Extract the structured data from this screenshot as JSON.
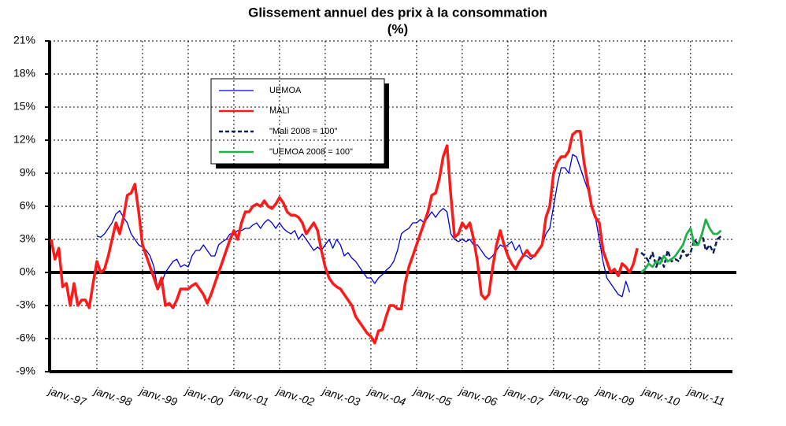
{
  "chart_data": {
    "type": "line",
    "title": "Glissement annuel des prix à la consommation",
    "subtitle": "(%)",
    "categories": [
      "janv.-97",
      null,
      null,
      null,
      null,
      null,
      null,
      null,
      null,
      null,
      null,
      null,
      "janv.-98",
      null,
      null,
      null,
      null,
      null,
      null,
      null,
      null,
      null,
      null,
      null,
      "janv.-99",
      null,
      null,
      null,
      null,
      null,
      null,
      null,
      null,
      null,
      null,
      null,
      "janv.-00",
      null,
      null,
      null,
      null,
      null,
      null,
      null,
      null,
      null,
      null,
      null,
      "janv.-01",
      null,
      null,
      null,
      null,
      null,
      null,
      null,
      null,
      null,
      null,
      null,
      "janv.-02",
      null,
      null,
      null,
      null,
      null,
      null,
      null,
      null,
      null,
      null,
      null,
      "janv.-03",
      null,
      null,
      null,
      null,
      null,
      null,
      null,
      null,
      null,
      null,
      null,
      "janv.-04",
      null,
      null,
      null,
      null,
      null,
      null,
      null,
      null,
      null,
      null,
      null,
      "janv.-05",
      null,
      null,
      null,
      null,
      null,
      null,
      null,
      null,
      null,
      null,
      null,
      "janv.-06",
      null,
      null,
      null,
      null,
      null,
      null,
      null,
      null,
      null,
      null,
      null,
      "janv.-07",
      null,
      null,
      null,
      null,
      null,
      null,
      null,
      null,
      null,
      null,
      null,
      "janv.-08",
      null,
      null,
      null,
      null,
      null,
      null,
      null,
      null,
      null,
      null,
      null,
      "janv.-09",
      null,
      null,
      null,
      null,
      null,
      null,
      null,
      null,
      null,
      null,
      null,
      "janv.-10",
      null,
      null,
      null,
      null,
      null,
      null,
      null,
      null,
      null,
      null,
      null,
      "janv.-11",
      null,
      null,
      null,
      null,
      null,
      null,
      null,
      null,
      null,
      null,
      null
    ],
    "series": [
      {
        "name": "UEMOA",
        "color": "#0000e0",
        "width": 1.3,
        "values": [
          null,
          null,
          null,
          null,
          null,
          null,
          null,
          null,
          null,
          null,
          null,
          null,
          3.3,
          3.2,
          3.5,
          4,
          4.5,
          5.3,
          5.6,
          5,
          4.5,
          3.5,
          3,
          2.5,
          2.3,
          2,
          1.5,
          0.5,
          -1.5,
          -1,
          0,
          0.5,
          1,
          1.2,
          0.5,
          0.7,
          0.5,
          1.5,
          2,
          2,
          2.5,
          2,
          1.5,
          1.5,
          2.5,
          2.8,
          3,
          3.5,
          3.5,
          3.8,
          3.8,
          4,
          4,
          4.3,
          4.5,
          4,
          4.5,
          4.8,
          4.5,
          4,
          4.5,
          4,
          3.7,
          3.5,
          3.8,
          3,
          3.5,
          3,
          2.5,
          2,
          2.3,
          2,
          2.5,
          3,
          2.2,
          3,
          2.5,
          1.5,
          1.8,
          1.3,
          1,
          0.5,
          0,
          -0.5,
          -0.5,
          -1,
          -0.5,
          -0.2,
          0.2,
          0.5,
          1,
          2,
          3.5,
          3.8,
          4,
          4.5,
          4.5,
          4.8,
          4.5,
          5,
          5.5,
          5,
          5.5,
          5.8,
          5.5,
          3.5,
          3,
          2.8,
          3,
          2.8,
          3,
          2.5,
          2.5,
          2,
          1.5,
          1.2,
          1.5,
          2,
          2.5,
          2.3,
          2.5,
          2.8,
          2,
          2.5,
          1.5,
          1.5,
          1.2,
          1.5,
          2,
          2.5,
          3.5,
          4,
          6,
          8,
          9.5,
          9.5,
          9,
          10.7,
          10.5,
          9.5,
          8.5,
          7.5,
          6,
          5,
          3,
          1,
          -0.5,
          -1,
          -1.5,
          -2,
          -2.2,
          -0.8,
          -1.8,
          null,
          null,
          null,
          null,
          null,
          null,
          null,
          null,
          null,
          null,
          null,
          null,
          null,
          null,
          null,
          null,
          null,
          null,
          null,
          null,
          null,
          null,
          null,
          null,
          null,
          null,
          null
        ]
      },
      {
        "name": "MALI",
        "color": "#ff1a1a",
        "width": 3.5,
        "values": [
          3,
          1.2,
          2.2,
          -1.3,
          -1,
          -3,
          -1,
          -3,
          -2.5,
          -2.5,
          -3.2,
          -1,
          1,
          0,
          0.3,
          1.5,
          3,
          4.5,
          3.5,
          5,
          7,
          7.2,
          8,
          5.5,
          2.5,
          1.5,
          0.5,
          -0.5,
          -1.5,
          -0.5,
          -3,
          -2.8,
          -3.2,
          -2.5,
          -1.5,
          -1.5,
          -1.5,
          -1.2,
          -1,
          -1.5,
          -2,
          -2.8,
          -2,
          -1,
          0,
          1,
          2,
          3,
          3.8,
          3,
          4.5,
          5.5,
          5.5,
          6,
          6.2,
          6,
          6.5,
          6,
          5.8,
          6.2,
          6.8,
          6.3,
          5.5,
          5.2,
          5.2,
          5,
          4.5,
          3.5,
          4,
          4.5,
          3.8,
          2,
          0.5,
          -0.5,
          -1,
          -1.3,
          -1.5,
          -2,
          -2.5,
          -3,
          -4,
          -4.5,
          -5,
          -5.5,
          -5.8,
          -6.4,
          -5.3,
          -5.2,
          -4,
          -3,
          -3,
          -3.3,
          -3.3,
          -1,
          0.5,
          1.5,
          2.5,
          3.5,
          4.5,
          5.5,
          7,
          7.2,
          8.5,
          10.5,
          11.5,
          7,
          3.2,
          3.5,
          4.5,
          4,
          4.5,
          3,
          1,
          -2,
          -2.4,
          -2,
          0.5,
          2.5,
          3.8,
          2.5,
          1.5,
          0.8,
          0.3,
          1,
          1.5,
          2,
          1.5,
          1.5,
          2,
          2.5,
          5,
          6,
          9,
          10,
          10.5,
          10.5,
          11,
          12.5,
          12.8,
          12.8,
          10,
          8,
          6,
          5,
          4.5,
          2,
          1,
          0,
          0.3,
          -0.3,
          0.8,
          0.5,
          0,
          0.8,
          2.2,
          null,
          null,
          null,
          null,
          null,
          null,
          null,
          null,
          null,
          null,
          null,
          null,
          null,
          null,
          null,
          null,
          null,
          null,
          null,
          null,
          null,
          null,
          null,
          null,
          null
        ]
      },
      {
        "name": "\"Mali 2008 = 100\"",
        "color": "#0a1f5c",
        "width": 2.5,
        "line_style": "dashed",
        "values": [
          null,
          null,
          null,
          null,
          null,
          null,
          null,
          null,
          null,
          null,
          null,
          null,
          null,
          null,
          null,
          null,
          null,
          null,
          null,
          null,
          null,
          null,
          null,
          null,
          null,
          null,
          null,
          null,
          null,
          null,
          null,
          null,
          null,
          null,
          null,
          null,
          null,
          null,
          null,
          null,
          null,
          null,
          null,
          null,
          null,
          null,
          null,
          null,
          null,
          null,
          null,
          null,
          null,
          null,
          null,
          null,
          null,
          null,
          null,
          null,
          null,
          null,
          null,
          null,
          null,
          null,
          null,
          null,
          null,
          null,
          null,
          null,
          null,
          null,
          null,
          null,
          null,
          null,
          null,
          null,
          null,
          null,
          null,
          null,
          null,
          null,
          null,
          null,
          null,
          null,
          null,
          null,
          null,
          null,
          null,
          null,
          null,
          null,
          null,
          null,
          null,
          null,
          null,
          null,
          null,
          null,
          null,
          null,
          null,
          null,
          null,
          null,
          null,
          null,
          null,
          null,
          null,
          null,
          null,
          null,
          null,
          null,
          null,
          null,
          null,
          null,
          null,
          null,
          null,
          null,
          null,
          null,
          null,
          null,
          null,
          null,
          null,
          null,
          null,
          null,
          null,
          null,
          null,
          null,
          null,
          null,
          null,
          null,
          null,
          null,
          null,
          null,
          null,
          null,
          null,
          1.8,
          1.5,
          1,
          1.8,
          0.5,
          1.5,
          0.5,
          2,
          1,
          1.2,
          1,
          2,
          1.5,
          1.8,
          3,
          2.5,
          3.5,
          2,
          2.5,
          1.8,
          3,
          3.3,
          null,
          null,
          null
        ]
      },
      {
        "name": "\"UEMOA 2008 = 100\"",
        "color": "#22b04a",
        "width": 2.8,
        "values": [
          null,
          null,
          null,
          null,
          null,
          null,
          null,
          null,
          null,
          null,
          null,
          null,
          null,
          null,
          null,
          null,
          null,
          null,
          null,
          null,
          null,
          null,
          null,
          null,
          null,
          null,
          null,
          null,
          null,
          null,
          null,
          null,
          null,
          null,
          null,
          null,
          null,
          null,
          null,
          null,
          null,
          null,
          null,
          null,
          null,
          null,
          null,
          null,
          null,
          null,
          null,
          null,
          null,
          null,
          null,
          null,
          null,
          null,
          null,
          null,
          null,
          null,
          null,
          null,
          null,
          null,
          null,
          null,
          null,
          null,
          null,
          null,
          null,
          null,
          null,
          null,
          null,
          null,
          null,
          null,
          null,
          null,
          null,
          null,
          null,
          null,
          null,
          null,
          null,
          null,
          null,
          null,
          null,
          null,
          null,
          null,
          null,
          null,
          null,
          null,
          null,
          null,
          null,
          null,
          null,
          null,
          null,
          null,
          null,
          null,
          null,
          null,
          null,
          null,
          null,
          null,
          null,
          null,
          null,
          null,
          null,
          null,
          null,
          null,
          null,
          null,
          null,
          null,
          null,
          null,
          null,
          null,
          null,
          null,
          null,
          null,
          null,
          null,
          null,
          null,
          null,
          null,
          null,
          null,
          null,
          null,
          null,
          null,
          null,
          null,
          null,
          null,
          null,
          null,
          null,
          0,
          0.3,
          0.8,
          0.5,
          1,
          0.8,
          1.5,
          1,
          1.2,
          1.5,
          2,
          2.5,
          3.5,
          4,
          2.5,
          2.5,
          3.5,
          4.8,
          4,
          3.5,
          3.5,
          3.8,
          null,
          null,
          null
        ]
      }
    ],
    "ylim": [
      -9,
      21
    ],
    "yticks": [
      {
        "value": -9,
        "label": "-9%"
      },
      {
        "value": -6,
        "label": "-6%"
      },
      {
        "value": -3,
        "label": "-3%"
      },
      {
        "value": 0,
        "label": "0%"
      },
      {
        "value": 3,
        "label": "3%"
      },
      {
        "value": 6,
        "label": "6%"
      },
      {
        "value": 9,
        "label": "9%"
      },
      {
        "value": 12,
        "label": "12%"
      },
      {
        "value": 15,
        "label": "15%"
      },
      {
        "value": 18,
        "label": "18%"
      },
      {
        "value": 21,
        "label": "21%"
      }
    ],
    "grid": true
  }
}
